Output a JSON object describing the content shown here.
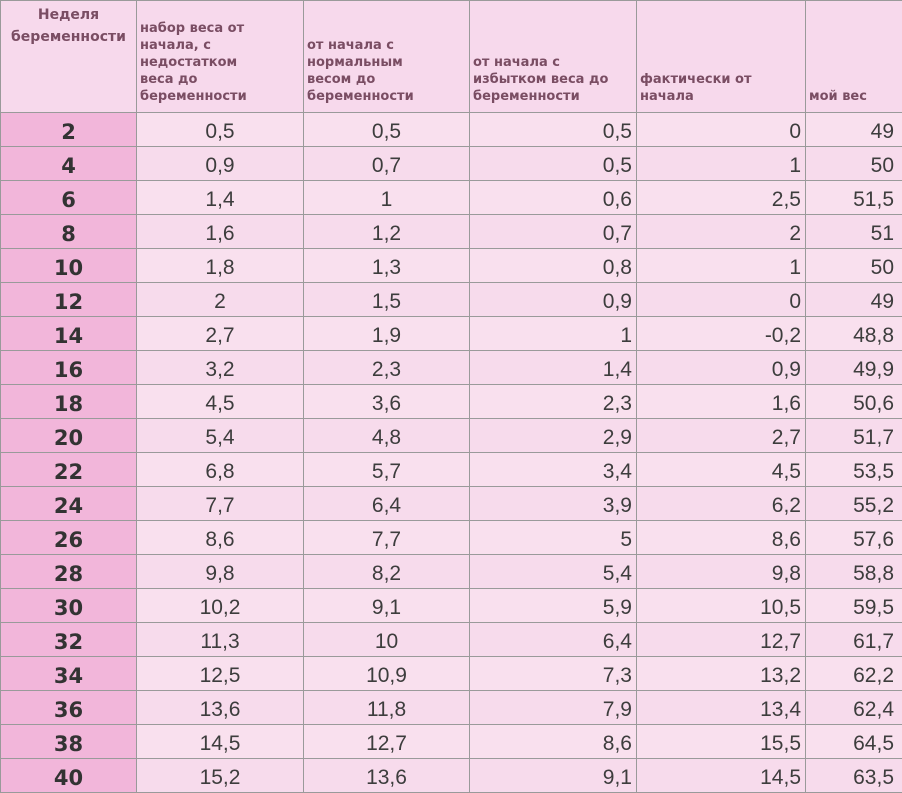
{
  "table": {
    "headers": [
      [
        "Неделя",
        "беременности"
      ],
      [
        "набор веса от",
        "начала, с",
        "недостатком",
        "веса до",
        "беременности"
      ],
      [
        "от начала с",
        "нормальным",
        "весом до",
        "беременности"
      ],
      [
        "от начала с",
        "избытком веса до",
        "беременности"
      ],
      [
        "фактически от",
        "начала"
      ],
      [
        "мой вес"
      ]
    ],
    "rows": [
      [
        "2",
        "0,5",
        "0,5",
        "0,5",
        "0",
        "49"
      ],
      [
        "4",
        "0,9",
        "0,7",
        "0,5",
        "1",
        "50"
      ],
      [
        "6",
        "1,4",
        "1",
        "0,6",
        "2,5",
        "51,5"
      ],
      [
        "8",
        "1,6",
        "1,2",
        "0,7",
        "2",
        "51"
      ],
      [
        "10",
        "1,8",
        "1,3",
        "0,8",
        "1",
        "50"
      ],
      [
        "12",
        "2",
        "1,5",
        "0,9",
        "0",
        "49"
      ],
      [
        "14",
        "2,7",
        "1,9",
        "1",
        "-0,2",
        "48,8"
      ],
      [
        "16",
        "3,2",
        "2,3",
        "1,4",
        "0,9",
        "49,9"
      ],
      [
        "18",
        "4,5",
        "3,6",
        "2,3",
        "1,6",
        "50,6"
      ],
      [
        "20",
        "5,4",
        "4,8",
        "2,9",
        "2,7",
        "51,7"
      ],
      [
        "22",
        "6,8",
        "5,7",
        "3,4",
        "4,5",
        "53,5"
      ],
      [
        "24",
        "7,7",
        "6,4",
        "3,9",
        "6,2",
        "55,2"
      ],
      [
        "26",
        "8,6",
        "7,7",
        "5",
        "8,6",
        "57,6"
      ],
      [
        "28",
        "9,8",
        "8,2",
        "5,4",
        "9,8",
        "58,8"
      ],
      [
        "30",
        "10,2",
        "9,1",
        "5,9",
        "10,5",
        "59,5"
      ],
      [
        "32",
        "11,3",
        "10",
        "6,4",
        "12,7",
        "61,7"
      ],
      [
        "34",
        "12,5",
        "10,9",
        "7,3",
        "13,2",
        "62,2"
      ],
      [
        "36",
        "13,6",
        "11,8",
        "7,9",
        "13,4",
        "62,4"
      ],
      [
        "38",
        "14,5",
        "12,7",
        "8,6",
        "15,5",
        "64,5"
      ],
      [
        "40",
        "15,2",
        "13,6",
        "9,1",
        "14,5",
        "63,5"
      ]
    ]
  }
}
